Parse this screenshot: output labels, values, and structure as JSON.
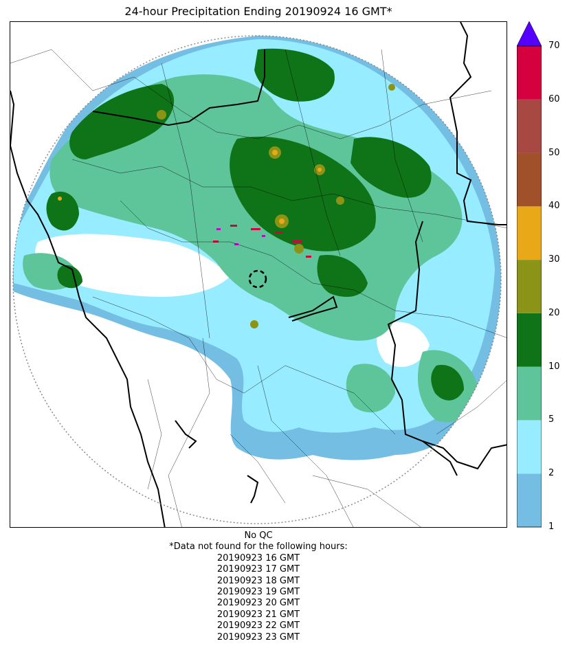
{
  "title": "24-hour Precipitation Ending 20190924 16 GMT*",
  "colorbar": {
    "ticks": [
      "1",
      "2",
      "5",
      "10",
      "20",
      "30",
      "40",
      "50",
      "60",
      "70"
    ],
    "colors": [
      "#74bde3",
      "#97ecff",
      "#5ec49a",
      "#0f7318",
      "#8c9417",
      "#e8a818",
      "#a0512a",
      "#a84843",
      "#d5003e"
    ],
    "extend_color": "#5500ff"
  },
  "map": {
    "radar_range_ring": "dotted",
    "colors": {
      "light_blue": "#74bde3",
      "cyan": "#97ecff",
      "light_green": "#5ec49a",
      "dark_green": "#0f7318",
      "olive": "#8c9417",
      "orange": "#e8a818",
      "red": "#d5003e",
      "magenta": "#cc00cc",
      "border": "#000000"
    }
  },
  "footer": {
    "qc": "No QC",
    "note": "*Data not found for the following hours:",
    "hours": [
      "20190923 16 GMT",
      "20190923 17 GMT",
      "20190923 18 GMT",
      "20190923 19 GMT",
      "20190923 20 GMT",
      "20190923 21 GMT",
      "20190923 22 GMT",
      "20190923 23 GMT"
    ]
  }
}
